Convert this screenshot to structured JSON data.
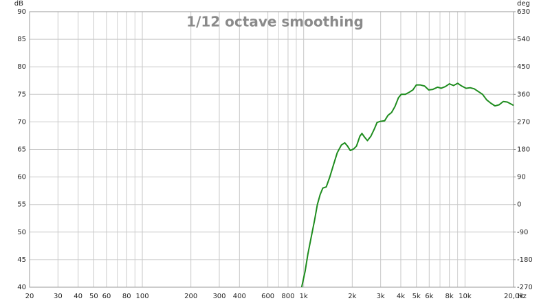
{
  "chart_data": {
    "type": "line",
    "title": "1/12 octave smoothing",
    "y_label": "dB",
    "y2_label": "deg",
    "x_label": "Hz",
    "xscale": "log",
    "xlim": [
      20,
      20000
    ],
    "xticks": [
      20,
      30,
      40,
      50,
      60,
      80,
      100,
      200,
      300,
      400,
      600,
      800,
      {
        "value": 1000,
        "label": "1k"
      },
      {
        "value": 2000,
        "label": "2k"
      },
      {
        "value": 3000,
        "label": "3k"
      },
      {
        "value": 4000,
        "label": "4k"
      },
      {
        "value": 5000,
        "label": "5k"
      },
      {
        "value": 6000,
        "label": "6k"
      },
      {
        "value": 8000,
        "label": "8k"
      },
      {
        "value": 10000,
        "label": "10k"
      },
      {
        "value": 20000,
        "label": "20,0k"
      }
    ],
    "minor_xticks": [
      70,
      90,
      700,
      900,
      7000,
      9000
    ],
    "ylim": [
      40,
      90
    ],
    "yticks": [
      40,
      45,
      50,
      55,
      60,
      65,
      70,
      75,
      80,
      85,
      90
    ],
    "y2lim": [
      -270,
      630
    ],
    "y2ticks": [
      -270,
      -180,
      -90,
      0,
      90,
      180,
      270,
      360,
      450,
      540,
      630
    ],
    "grid": true,
    "color": "#1e8c1e",
    "x": [
      972,
      1021,
      1062,
      1114,
      1169,
      1216,
      1265,
      1315,
      1380,
      1452,
      1538,
      1615,
      1713,
      1798,
      1871,
      1946,
      2043,
      2125,
      2231,
      2297,
      2389,
      2485,
      2610,
      2741,
      2851,
      2994,
      3175,
      3335,
      3506,
      3682,
      3870,
      4025,
      4268,
      4526,
      4753,
      4992,
      5293,
      5620,
      5957,
      6320,
      6770,
      7110,
      7548,
      8002,
      8488,
      9010,
      9550,
      10160,
      10770,
      11420,
      12110,
      12850,
      13620,
      14450,
      15340,
      16260,
      17260,
      18290,
      19410,
      20000
    ],
    "values": [
      40,
      42.9,
      46,
      49.1,
      52.2,
      55,
      56.8,
      58,
      58.2,
      60,
      62.4,
      64.4,
      65.8,
      66.2,
      65.6,
      64.8,
      65.1,
      65.6,
      67.4,
      67.9,
      67.2,
      66.6,
      67.4,
      68.7,
      69.9,
      70.1,
      70.2,
      71.2,
      71.7,
      72.8,
      74.4,
      75,
      75,
      75.4,
      75.8,
      76.7,
      76.7,
      76.5,
      75.8,
      75.9,
      76.3,
      76.1,
      76.4,
      76.9,
      76.6,
      77,
      76.5,
      76.1,
      76.2,
      76,
      75.5,
      75,
      74,
      73.4,
      72.9,
      73.1,
      73.7,
      73.6,
      73.2,
      73
    ]
  }
}
